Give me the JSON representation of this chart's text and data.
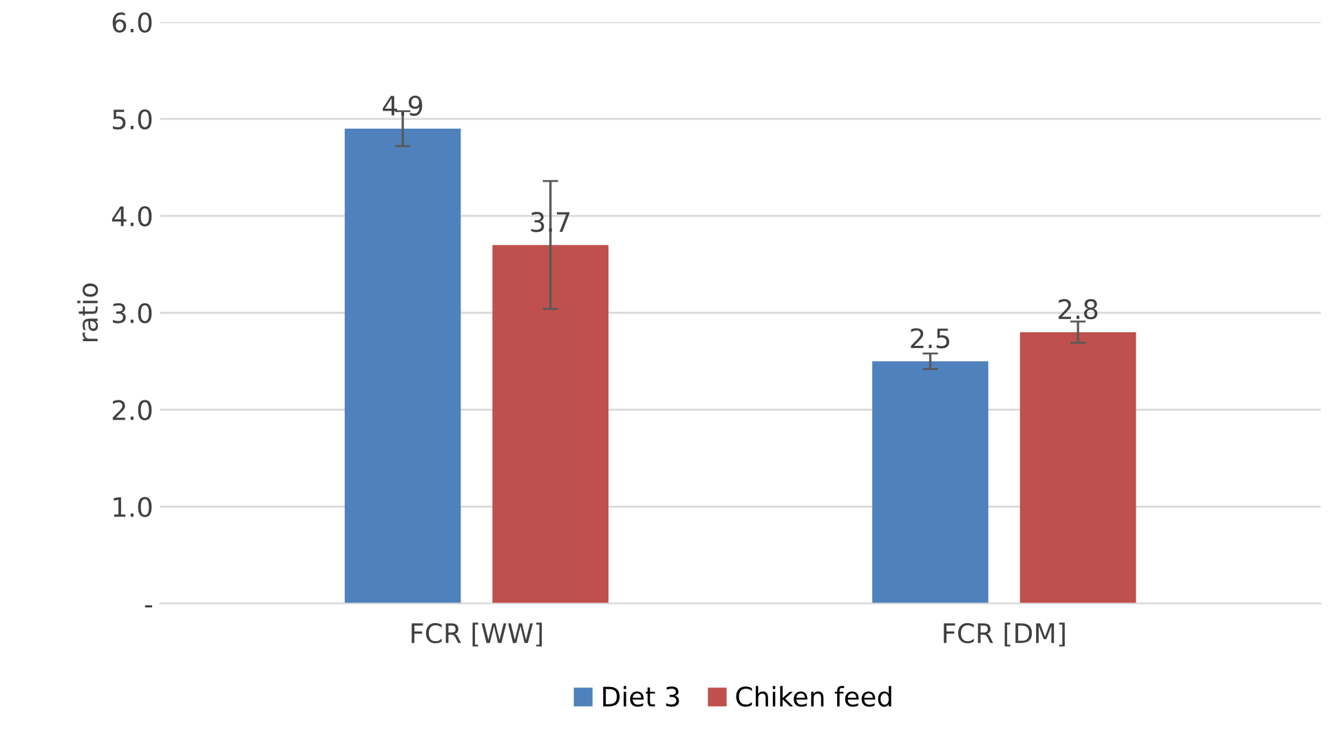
{
  "chart_data": {
    "type": "bar",
    "ylabel": "ratio",
    "categories": [
      "FCR [WW]",
      "FCR [DM]"
    ],
    "series": [
      {
        "name": "Diet 3",
        "color": "#4f81bd",
        "values": [
          4.9,
          2.5
        ],
        "errors": [
          0.18,
          0.08
        ]
      },
      {
        "name": "Chiken feed",
        "color": "#c0504d",
        "values": [
          3.7,
          2.8
        ],
        "errors": [
          0.66,
          0.11
        ]
      }
    ],
    "ylim": [
      0,
      6
    ],
    "yticks": [
      {
        "value": 0,
        "label": "-"
      },
      {
        "value": 1,
        "label": "1.0"
      },
      {
        "value": 2,
        "label": "2.0"
      },
      {
        "value": 3,
        "label": "3.0"
      },
      {
        "value": 4,
        "label": "4.0"
      },
      {
        "value": 5,
        "label": "5.0"
      },
      {
        "value": 6,
        "label": "6.0"
      }
    ],
    "grid": "y",
    "legend": "bottom",
    "data_labels": true
  }
}
